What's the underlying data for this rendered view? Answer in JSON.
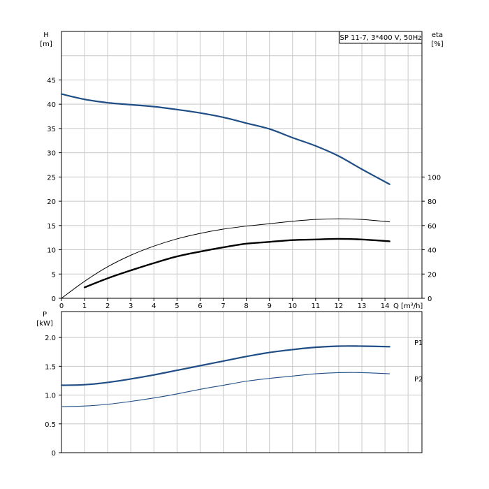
{
  "colors": {
    "blue": "#1f4e86",
    "black": "#000000",
    "grid": "#c8c8c8"
  },
  "chart_data": [
    {
      "type": "line",
      "title": "SP 11-7, 3*400 V, 50Hz",
      "xlabel": "Q [m³/h]",
      "x_ticks": [
        "0",
        "1",
        "2",
        "3",
        "4",
        "5",
        "6",
        "7",
        "8",
        "9",
        "10",
        "11",
        "12",
        "13",
        "14"
      ],
      "xlim": [
        0,
        15.6
      ],
      "ylabel_left": "H",
      "ylabel_left_unit": "[m]",
      "ylim_left": [
        0,
        55
      ],
      "y_ticks_left": [
        "0",
        "5",
        "10",
        "15",
        "20",
        "25",
        "30",
        "35",
        "40",
        "45"
      ],
      "ylabel_right": "eta",
      "ylabel_right_unit": "[%]",
      "ylim_right": [
        0,
        100
      ],
      "y_ticks_right": [
        "0",
        "20",
        "40",
        "60",
        "80",
        "100"
      ],
      "grid": true,
      "series": [
        {
          "axis": "left",
          "color": "blue",
          "width": 2.2,
          "x": [
            0,
            1,
            2,
            3,
            4,
            5,
            6,
            7,
            8,
            9,
            10,
            11,
            12,
            13,
            14.2
          ],
          "values": [
            42.1,
            41.0,
            40.3,
            39.9,
            39.5,
            38.9,
            38.2,
            37.3,
            36.1,
            34.9,
            33.1,
            31.4,
            29.3,
            26.6,
            23.5
          ]
        },
        {
          "axis": "right",
          "color": "black",
          "width": 1.0,
          "x": [
            0,
            1,
            2,
            3,
            4,
            5,
            6,
            7,
            8,
            9,
            10,
            11,
            12,
            13,
            14.2
          ],
          "values": [
            0,
            14,
            26,
            35.5,
            43,
            49,
            53.5,
            57,
            59.5,
            61.5,
            63.5,
            65,
            65.5,
            65,
            63
          ]
        },
        {
          "axis": "right",
          "color": "black",
          "width": 2.4,
          "x": [
            1,
            2,
            3,
            4,
            5,
            6,
            7,
            8,
            9,
            10,
            11,
            12,
            13,
            14.2
          ],
          "values": [
            9,
            16.5,
            23,
            29,
            34.5,
            38.5,
            42,
            45,
            46.5,
            48,
            48.5,
            49,
            48.5,
            47
          ]
        }
      ]
    },
    {
      "type": "line",
      "ylabel": "P",
      "ylabel_unit": "[kW]",
      "xlim": [
        0,
        15.6
      ],
      "ylim": [
        0,
        2.45
      ],
      "y_ticks": [
        "0",
        "0.5",
        "1.0",
        "1.5",
        "2.0"
      ],
      "grid": true,
      "series": [
        {
          "name": "P1",
          "color": "blue",
          "width": 2.2,
          "x": [
            0,
            1,
            2,
            3,
            4,
            5,
            6,
            7,
            8,
            9,
            10,
            11,
            12,
            13,
            14.2
          ],
          "values": [
            1.17,
            1.18,
            1.22,
            1.28,
            1.35,
            1.43,
            1.51,
            1.59,
            1.67,
            1.74,
            1.79,
            1.83,
            1.85,
            1.85,
            1.84
          ]
        },
        {
          "name": "P2",
          "color": "blue",
          "width": 1.1,
          "x": [
            0,
            1,
            2,
            3,
            4,
            5,
            6,
            7,
            8,
            9,
            10,
            11,
            12,
            13,
            14.2
          ],
          "values": [
            0.8,
            0.81,
            0.84,
            0.89,
            0.95,
            1.02,
            1.1,
            1.17,
            1.24,
            1.29,
            1.33,
            1.37,
            1.39,
            1.39,
            1.37
          ]
        }
      ]
    }
  ]
}
